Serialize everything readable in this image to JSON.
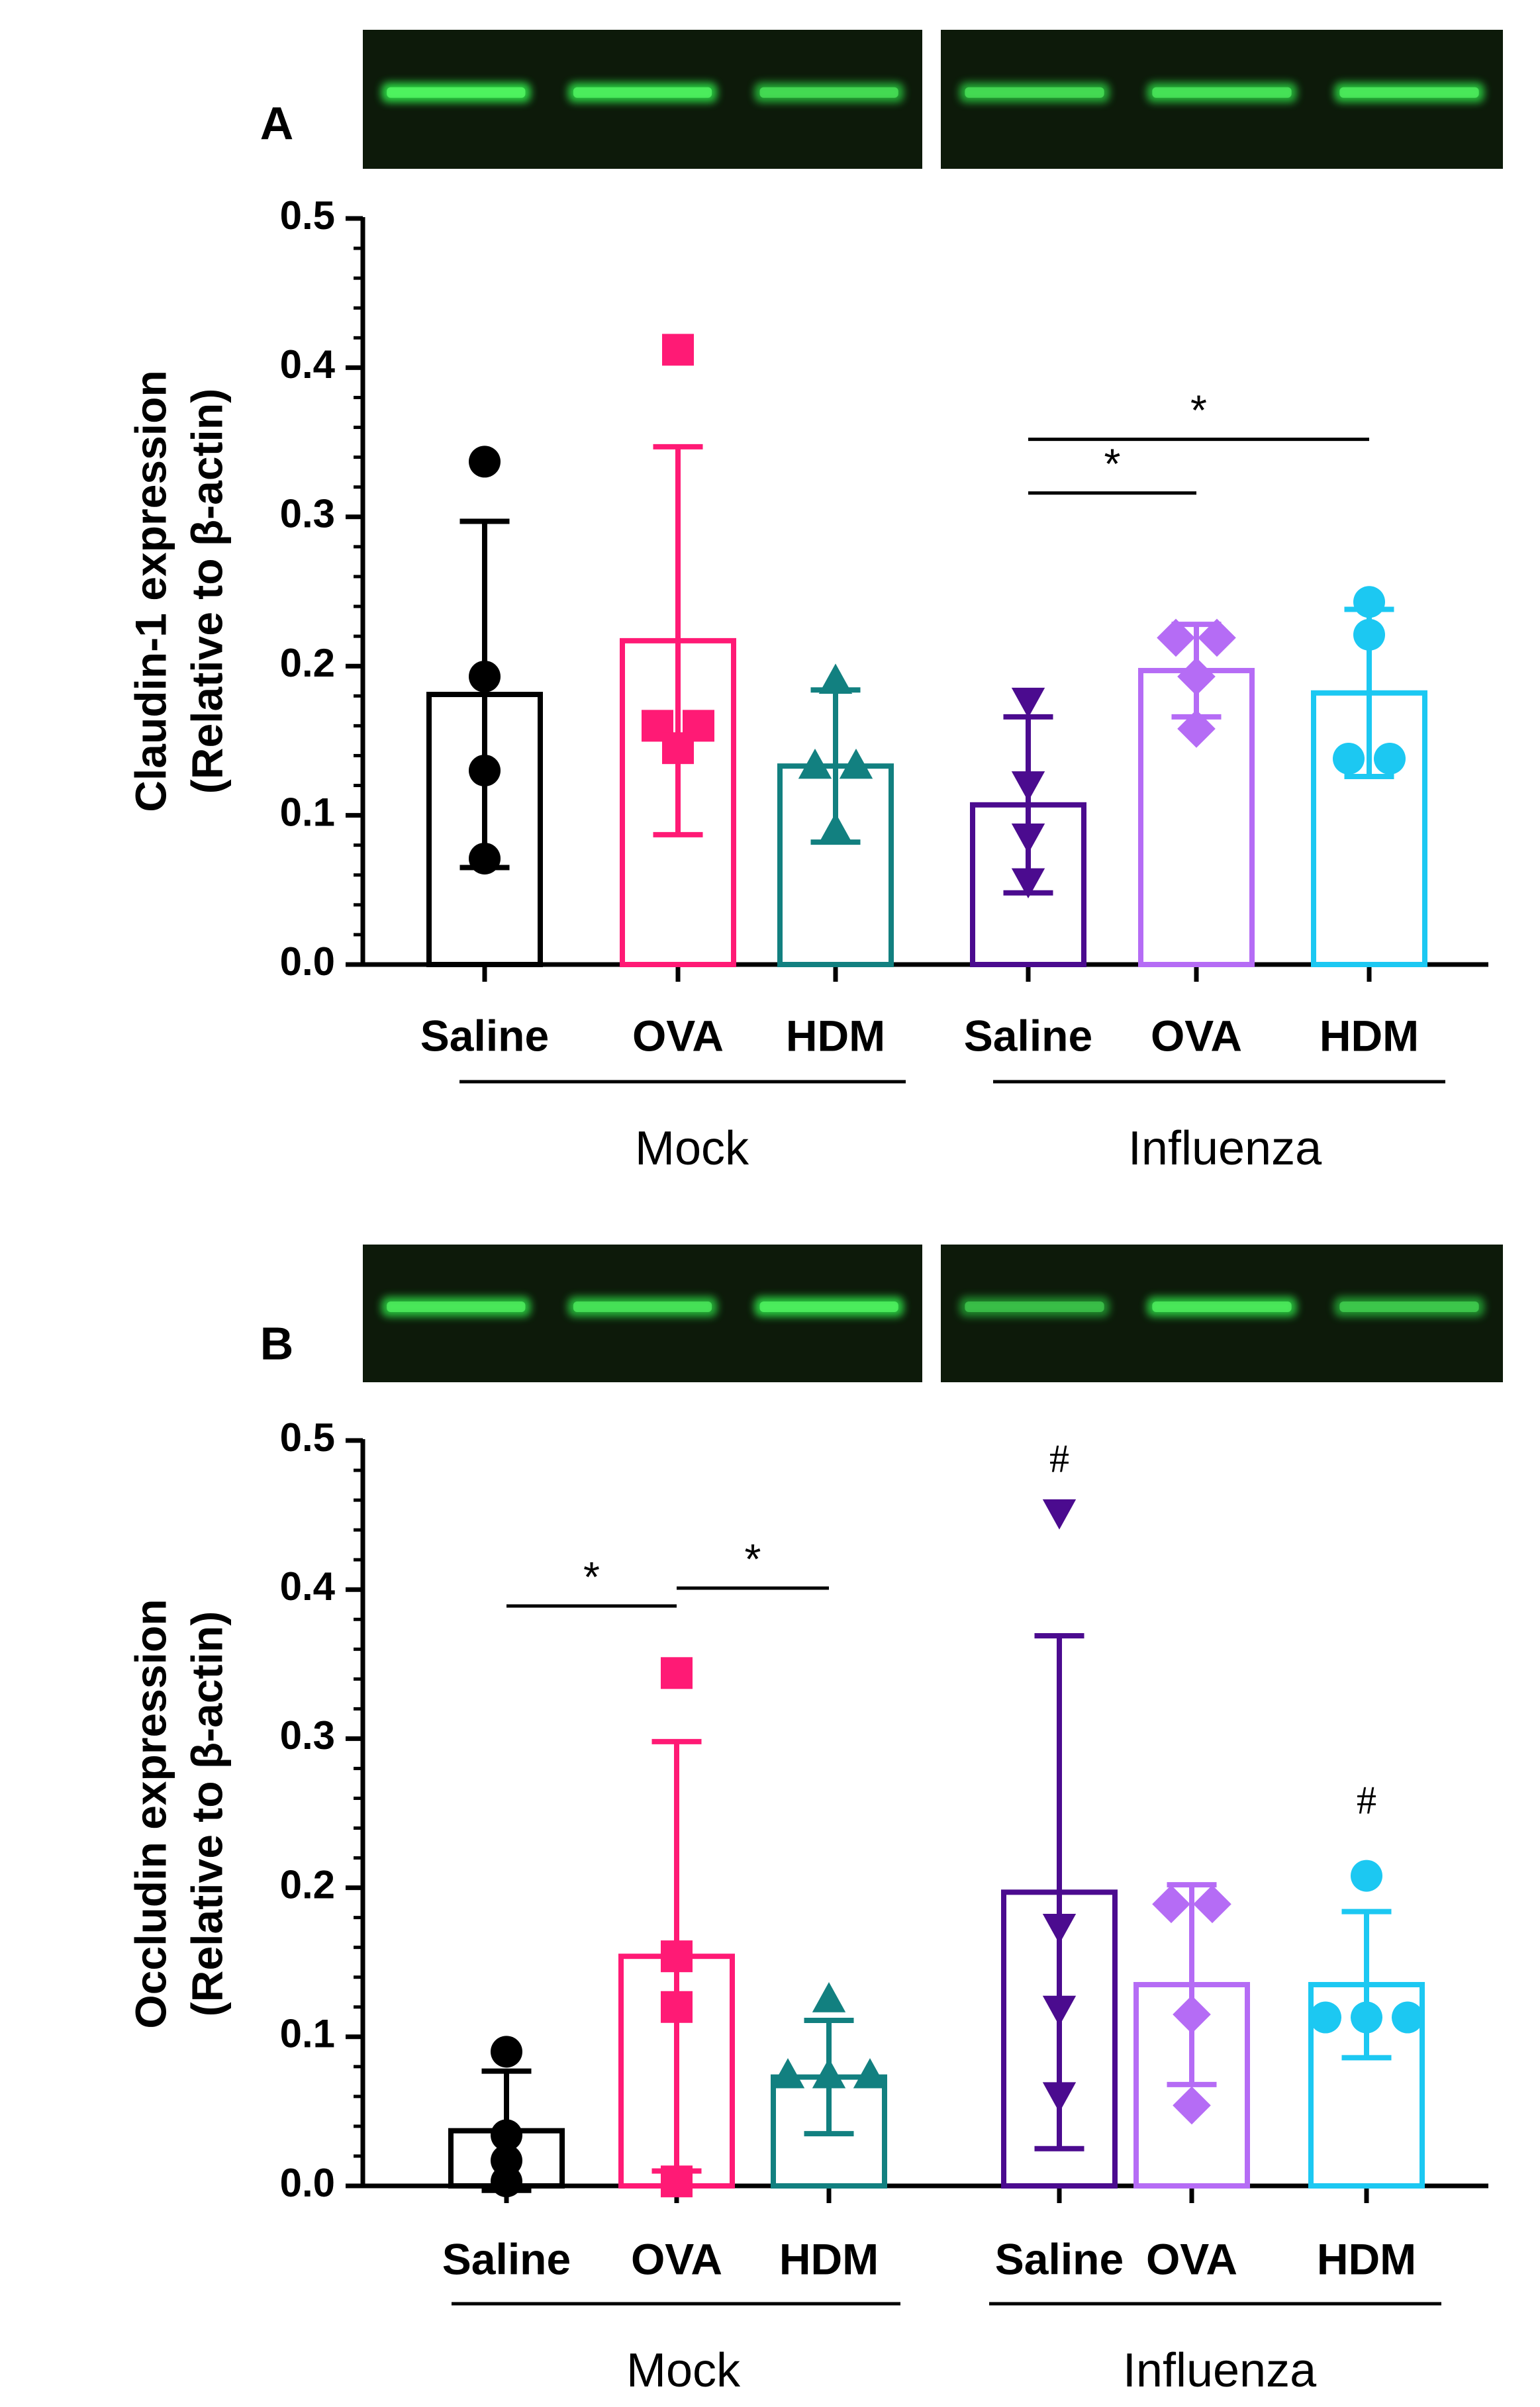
{
  "chart_data": [
    {
      "type": "bar",
      "panel": "A",
      "ylabel": [
        "Claudin-1 expression",
        "(Relative to β-actin)"
      ],
      "ylim": [
        0,
        0.5
      ],
      "yticks": [
        "0.0",
        "0.1",
        "0.2",
        "0.3",
        "0.4",
        "0.5"
      ],
      "categories": [
        "Saline",
        "OVA",
        "HDM",
        "Saline",
        "OVA",
        "HDM"
      ],
      "groups": [
        {
          "name": "Mock",
          "members": [
            0,
            1,
            2
          ]
        },
        {
          "name": "Influenza",
          "members": [
            3,
            4,
            5
          ]
        }
      ],
      "colors": [
        "#000000",
        "#ff1a75",
        "#128080",
        "#4b0b8f",
        "#b56cf5",
        "#1cc8f2"
      ],
      "markers": [
        "circle",
        "square",
        "triangle-up",
        "triangle-down",
        "diamond",
        "circle"
      ],
      "means": [
        0.181,
        0.217,
        0.133,
        0.107,
        0.197,
        0.182
      ],
      "sd": [
        0.116,
        0.13,
        0.051,
        0.059,
        0.031,
        0.056
      ],
      "points": [
        [
          0.337,
          0.193,
          0.13,
          0.071
        ],
        [
          0.412,
          0.16,
          0.16,
          0.145
        ],
        [
          0.19,
          0.133,
          0.133,
          0.09
        ],
        [
          0.177,
          0.121,
          0.086,
          0.056
        ],
        [
          0.219,
          0.219,
          0.193,
          0.158
        ],
        [
          0.243,
          0.221,
          0.138,
          0.138
        ]
      ],
      "significance": [
        {
          "from": 3,
          "to": 4,
          "y": 0.316,
          "label": "*"
        },
        {
          "from": 3,
          "to": 5,
          "y": 0.352,
          "label": "*"
        }
      ],
      "hash_marks": []
    },
    {
      "type": "bar",
      "panel": "B",
      "ylabel": [
        "Occludin expression",
        "(Relative to β-actin)"
      ],
      "ylim": [
        0,
        0.5
      ],
      "yticks": [
        "0.0",
        "0.1",
        "0.2",
        "0.3",
        "0.4",
        "0.5"
      ],
      "categories": [
        "Saline",
        "OVA",
        "HDM",
        "Saline",
        "OVA",
        "HDM"
      ],
      "groups": [
        {
          "name": "Mock",
          "members": [
            0,
            1,
            2
          ]
        },
        {
          "name": "Influenza",
          "members": [
            3,
            4,
            5
          ]
        }
      ],
      "colors": [
        "#000000",
        "#ff1a75",
        "#128080",
        "#4b0b8f",
        "#b56cf5",
        "#1cc8f2"
      ],
      "markers": [
        "circle",
        "square",
        "triangle-up",
        "triangle-down",
        "diamond",
        "circle"
      ],
      "means": [
        0.037,
        0.154,
        0.073,
        0.197,
        0.135,
        0.135
      ],
      "sd": [
        0.04,
        0.144,
        0.038,
        0.172,
        0.067,
        0.049
      ],
      "points": [
        [
          0.09,
          0.034,
          0.017,
          0.003
        ],
        [
          0.344,
          0.154,
          0.12,
          0.003
        ],
        [
          0.125,
          0.074,
          0.074,
          0.074
        ],
        [
          0.452,
          0.174,
          0.119,
          0.061
        ],
        [
          0.189,
          0.189,
          0.115,
          0.054
        ],
        [
          0.208,
          0.113,
          0.113,
          0.113
        ]
      ],
      "significance": [
        {
          "from": 0,
          "to": 1,
          "y": 0.389,
          "label": "*"
        },
        {
          "from": 1,
          "to": 2,
          "y": 0.401,
          "label": "*"
        }
      ],
      "hash_marks": [
        {
          "index": 3,
          "y": 0.485,
          "label": "#"
        },
        {
          "index": 5,
          "y": 0.256,
          "label": "#"
        }
      ]
    }
  ],
  "blots": [
    {
      "panel": "A",
      "left_bands": [
        0.9,
        0.85,
        0.7
      ],
      "right_bands": [
        0.7,
        0.75,
        0.8
      ]
    },
    {
      "panel": "B",
      "left_bands": [
        0.8,
        0.75,
        0.85
      ],
      "right_bands": [
        0.55,
        0.8,
        0.6
      ]
    }
  ]
}
